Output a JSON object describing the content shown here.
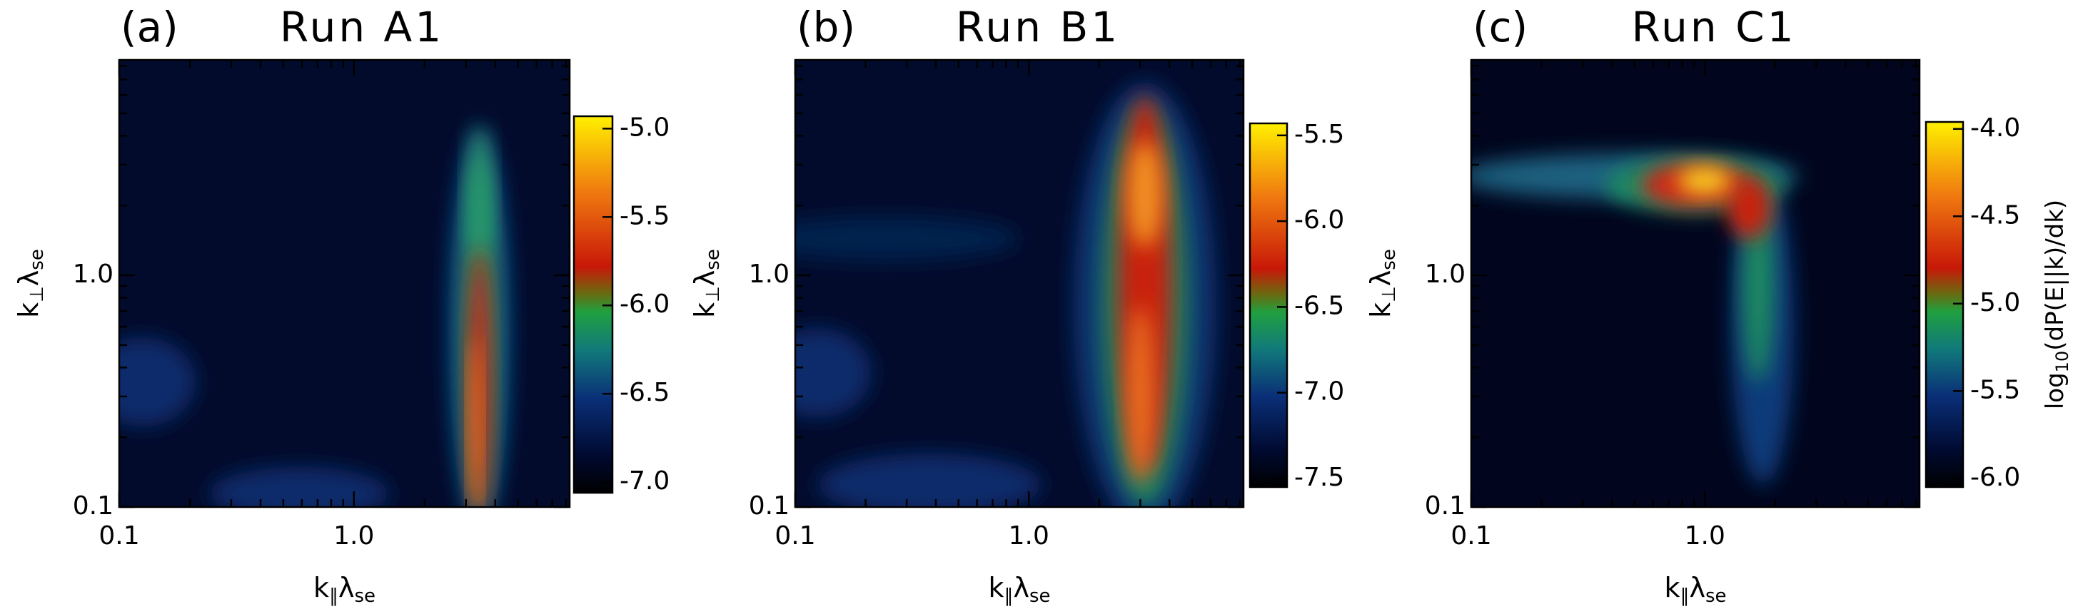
{
  "chart_data": [
    {
      "type": "contour",
      "label": "(a)",
      "title": "Run A1",
      "xlabel": [
        "k",
        "∥",
        "λ",
        "se"
      ],
      "ylabel": [
        "k",
        "⊥",
        "λ",
        "se"
      ],
      "xlim": [
        0.1,
        8.3
      ],
      "ylim": [
        0.1,
        8.5
      ],
      "xticks": [
        0.1,
        {
          "value": 1,
          "label": "1.0"
        }
      ],
      "yticks": [
        0.1,
        {
          "value": 1,
          "label": "1.0"
        }
      ],
      "minor_ticks": [
        0.2,
        0.3,
        0.4,
        0.5,
        0.6,
        0.7,
        0.8,
        0.9,
        2,
        3,
        4,
        5,
        6,
        7,
        8
      ],
      "clim": [
        -7.06,
        -4.93
      ],
      "cticks": [
        {
          "value": -5,
          "label": "-5.0"
        },
        -5.5,
        {
          "value": -6,
          "label": "-6.0"
        },
        -6.5,
        {
          "value": -7,
          "label": "-7.0"
        }
      ]
    },
    {
      "type": "contour",
      "label": "(b)",
      "title": "Run B1",
      "xlabel": [
        "k",
        "∥",
        "λ",
        "se"
      ],
      "ylabel": [
        "k",
        "⊥",
        "λ",
        "se"
      ],
      "xlim": [
        0.1,
        8.3
      ],
      "ylim": [
        0.1,
        8.5
      ],
      "xticks": [
        0.1,
        {
          "value": 1,
          "label": "1.0"
        }
      ],
      "yticks": [
        0.1,
        {
          "value": 1,
          "label": "1.0"
        }
      ],
      "minor_ticks": [
        0.2,
        0.3,
        0.4,
        0.5,
        0.6,
        0.7,
        0.8,
        0.9,
        2,
        3,
        4,
        5,
        6,
        7,
        8
      ],
      "clim": [
        -7.55,
        -5.43
      ],
      "cticks": [
        -5.5,
        {
          "value": -6,
          "label": "-6.0"
        },
        -6.5,
        {
          "value": -7,
          "label": "-7.0"
        },
        -7.5
      ]
    },
    {
      "type": "contour",
      "label": "(c)",
      "title": "Run C1",
      "xlabel": [
        "k",
        "∥",
        "λ",
        "se"
      ],
      "ylabel": [
        "k",
        "⊥",
        "λ",
        "se"
      ],
      "xlim": [
        0.1,
        8.3
      ],
      "ylim": [
        0.1,
        8.5
      ],
      "xticks": [
        0.1,
        {
          "value": 1,
          "label": "1.0"
        }
      ],
      "yticks": [
        0.1,
        {
          "value": 1,
          "label": "1.0"
        }
      ],
      "minor_ticks": [
        0.2,
        0.3,
        0.4,
        0.5,
        0.6,
        0.7,
        0.8,
        0.9,
        2,
        3,
        4,
        5,
        6,
        7,
        8
      ],
      "clim": [
        -6.05,
        -3.96
      ],
      "cticks": [
        {
          "value": -4,
          "label": "-4.0"
        },
        -4.5,
        {
          "value": -5,
          "label": "-5.0"
        },
        -5.5,
        {
          "value": -6,
          "label": "-6.0"
        }
      ],
      "colorbar_label": [
        "log",
        "10",
        "(dP(E||k)/dk)"
      ]
    }
  ]
}
